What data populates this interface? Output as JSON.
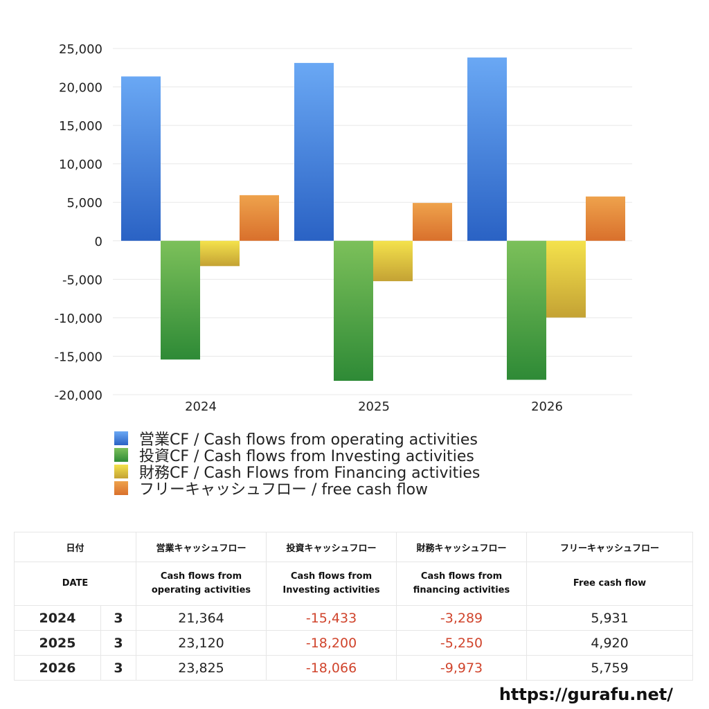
{
  "chart_data": {
    "type": "bar",
    "categories": [
      "2024",
      "2025",
      "2026"
    ],
    "series": [
      {
        "name": "営業CF / Cash flows from operating activities",
        "values": [
          21364,
          23120,
          23825
        ],
        "color_top": "#6aa8f4",
        "color_bottom": "#2a62c4"
      },
      {
        "name": "投資CF / Cash flows from Investing activities",
        "values": [
          -15433,
          -18200,
          -18066
        ],
        "color_top": "#7cc05a",
        "color_bottom": "#2e8a36"
      },
      {
        "name": "財務CF / Cash Flows from Financing activities",
        "values": [
          -3289,
          -5250,
          -9973
        ],
        "color_top": "#f4e24c",
        "color_bottom": "#c4a234"
      },
      {
        "name": "フリーキャッシュフロー / free cash flow",
        "values": [
          5931,
          4920,
          5759
        ],
        "color_top": "#eea24c",
        "color_bottom": "#d9702c"
      }
    ],
    "ylim": [
      -20000,
      25000
    ],
    "yticks": [
      25000,
      20000,
      15000,
      10000,
      5000,
      0,
      -5000,
      -10000,
      -15000,
      -20000
    ],
    "ytick_labels": [
      "25,000",
      "20,000",
      "15,000",
      "10,000",
      "5,000",
      "0",
      "-5,000",
      "-10,000",
      "-15,000",
      "-20,000"
    ],
    "grid": true,
    "legend_position": "bottom"
  },
  "table": {
    "header_jp": [
      "日付",
      "営業キャッシュフロー",
      "投資キャッシュフロー",
      "財務キャッシュフロー",
      "フリーキャッシュフロー"
    ],
    "header_en": [
      "DATE",
      "Cash flows from\noperating activities",
      "Cash flows from\nInvesting activities",
      "Cash flows from\nfinancing activities",
      "Free cash flow"
    ],
    "rows": [
      {
        "year": "2024",
        "month": "3",
        "op": "21,364",
        "inv": "-15,433",
        "fin": "-3,289",
        "fcf": "5,931"
      },
      {
        "year": "2025",
        "month": "3",
        "op": "23,120",
        "inv": "-18,200",
        "fin": "-5,250",
        "fcf": "4,920"
      },
      {
        "year": "2026",
        "month": "3",
        "op": "23,825",
        "inv": "-18,066",
        "fin": "-9,973",
        "fcf": "5,759"
      }
    ],
    "negative_color": "#d0442c"
  },
  "footer": {
    "url": "https://gurafu.net/"
  }
}
